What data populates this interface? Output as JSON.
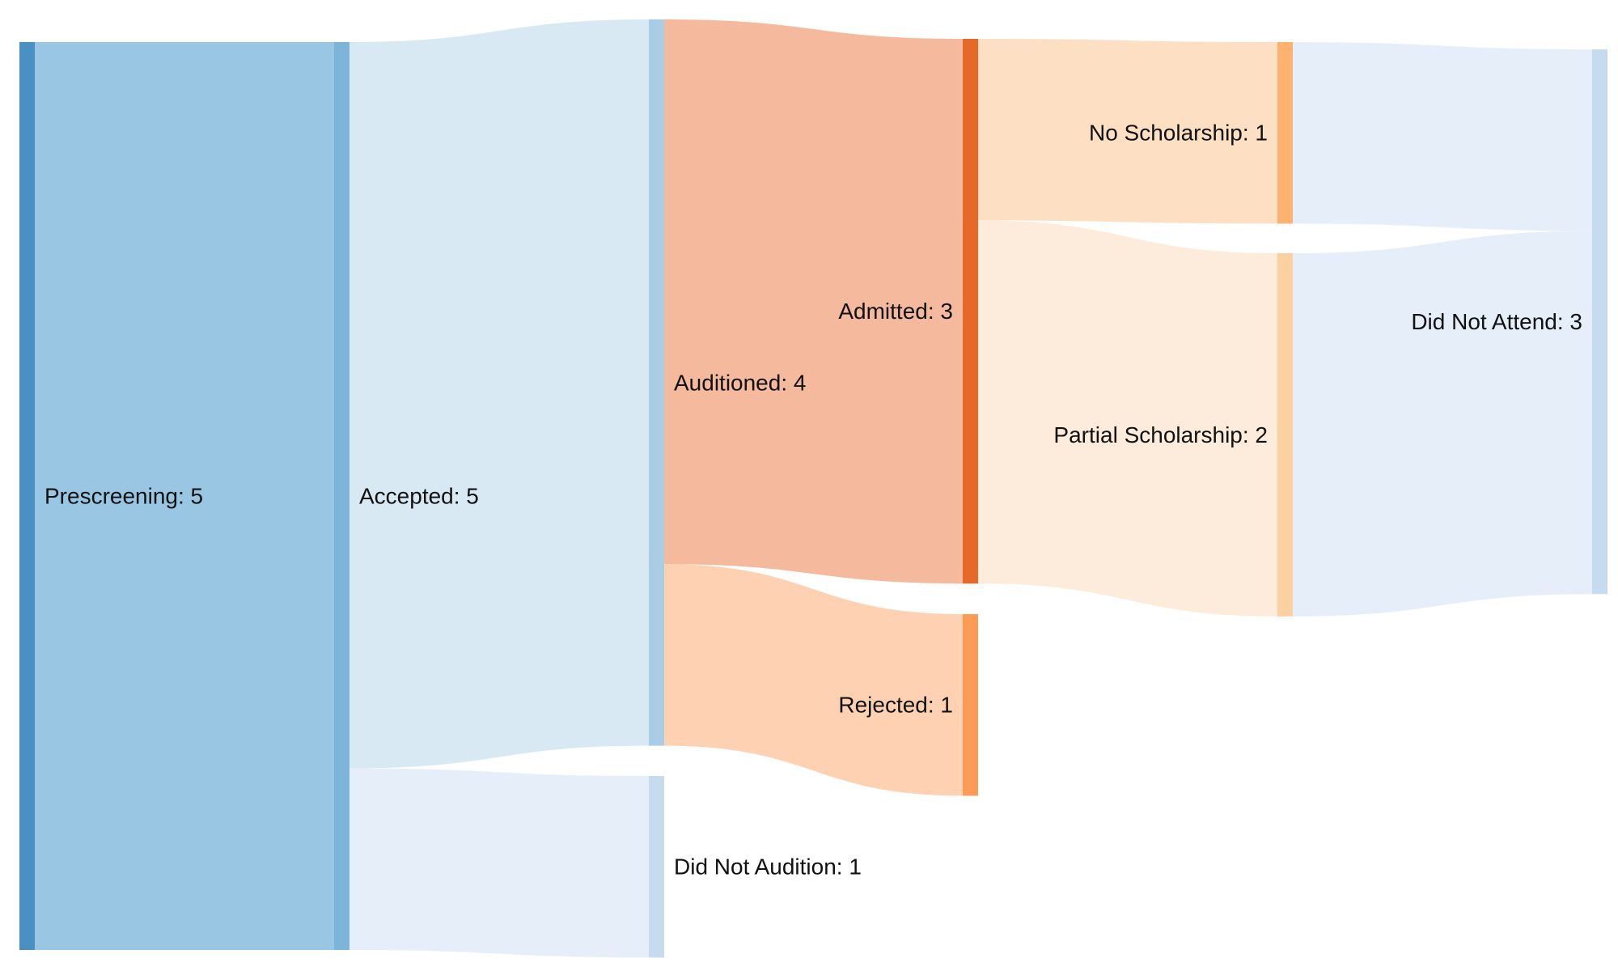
{
  "chart_data": {
    "type": "sankey",
    "nodes": [
      {
        "id": "prescreening",
        "name": "Prescreening",
        "value": 5,
        "label": "Prescreening: 5",
        "color": "#4a90c2"
      },
      {
        "id": "accepted",
        "name": "Accepted",
        "value": 5,
        "label": "Accepted: 5",
        "color": "#7db4da"
      },
      {
        "id": "auditioned",
        "name": "Auditioned",
        "value": 4,
        "label": "Auditioned: 4",
        "color": "#a9cde6"
      },
      {
        "id": "did_not_audition",
        "name": "Did Not Audition",
        "value": 1,
        "label": "Did Not Audition: 1",
        "color": "#c6dbef"
      },
      {
        "id": "admitted",
        "name": "Admitted",
        "value": 3,
        "label": "Admitted: 3",
        "color": "#e6692a"
      },
      {
        "id": "rejected",
        "name": "Rejected",
        "value": 1,
        "label": "Rejected: 1",
        "color": "#fd9a55"
      },
      {
        "id": "no_scholarship",
        "name": "No Scholarship",
        "value": 1,
        "label": "No Scholarship: 1",
        "color": "#fdb36f"
      },
      {
        "id": "partial_scholarship",
        "name": "Partial Scholarship",
        "value": 2,
        "label": "Partial Scholarship: 2",
        "color": "#fdd0a2"
      },
      {
        "id": "did_not_attend",
        "name": "Did Not Attend",
        "value": 3,
        "label": "Did Not Attend: 3",
        "color": "#c6dbef"
      }
    ],
    "links": [
      {
        "source": "prescreening",
        "target": "accepted",
        "value": 5,
        "color": "#98c6e3"
      },
      {
        "source": "accepted",
        "target": "auditioned",
        "value": 4,
        "color": "#d9e9f4"
      },
      {
        "source": "accepted",
        "target": "did_not_audition",
        "value": 1,
        "color": "#e6eff9"
      },
      {
        "source": "auditioned",
        "target": "admitted",
        "value": 3,
        "color": "#f5ba9e"
      },
      {
        "source": "auditioned",
        "target": "rejected",
        "value": 1,
        "color": "#fdd1b1"
      },
      {
        "source": "admitted",
        "target": "no_scholarship",
        "value": 1,
        "color": "#fddfc4"
      },
      {
        "source": "admitted",
        "target": "partial_scholarship",
        "value": 2,
        "color": "#fdecdb"
      },
      {
        "source": "no_scholarship",
        "target": "did_not_attend",
        "value": 1,
        "color": "#e6eff9"
      },
      {
        "source": "partial_scholarship",
        "target": "did_not_attend",
        "value": 2,
        "color": "#e6eff9"
      }
    ]
  }
}
